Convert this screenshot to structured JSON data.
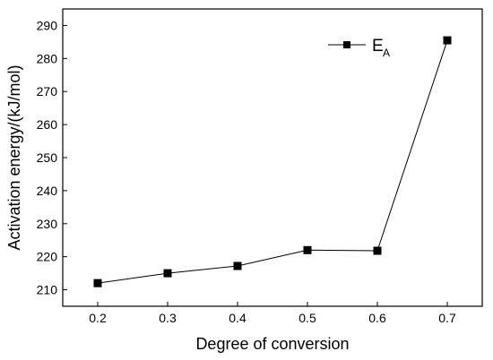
{
  "chart_data": {
    "type": "line",
    "xlabel": "Degree of conversion",
    "ylabel": "Activation energy/(kJ/mol)",
    "xlim": [
      0.15,
      0.75
    ],
    "ylim": [
      205,
      295
    ],
    "xticks": [
      "0.2",
      "0.3",
      "0.4",
      "0.5",
      "0.6",
      "0.7"
    ],
    "yticks": [
      "210",
      "220",
      "230",
      "240",
      "250",
      "260",
      "270",
      "280",
      "290"
    ],
    "x": [
      0.2,
      0.3,
      0.4,
      0.5,
      0.6,
      0.7
    ],
    "series": [
      {
        "name": "E",
        "name_sub": "A",
        "marker": "square",
        "color": "#000000",
        "values": [
          212,
          215,
          217.2,
          222,
          221.8,
          285.5
        ]
      }
    ],
    "legend_position": "top-right",
    "grid": false
  }
}
